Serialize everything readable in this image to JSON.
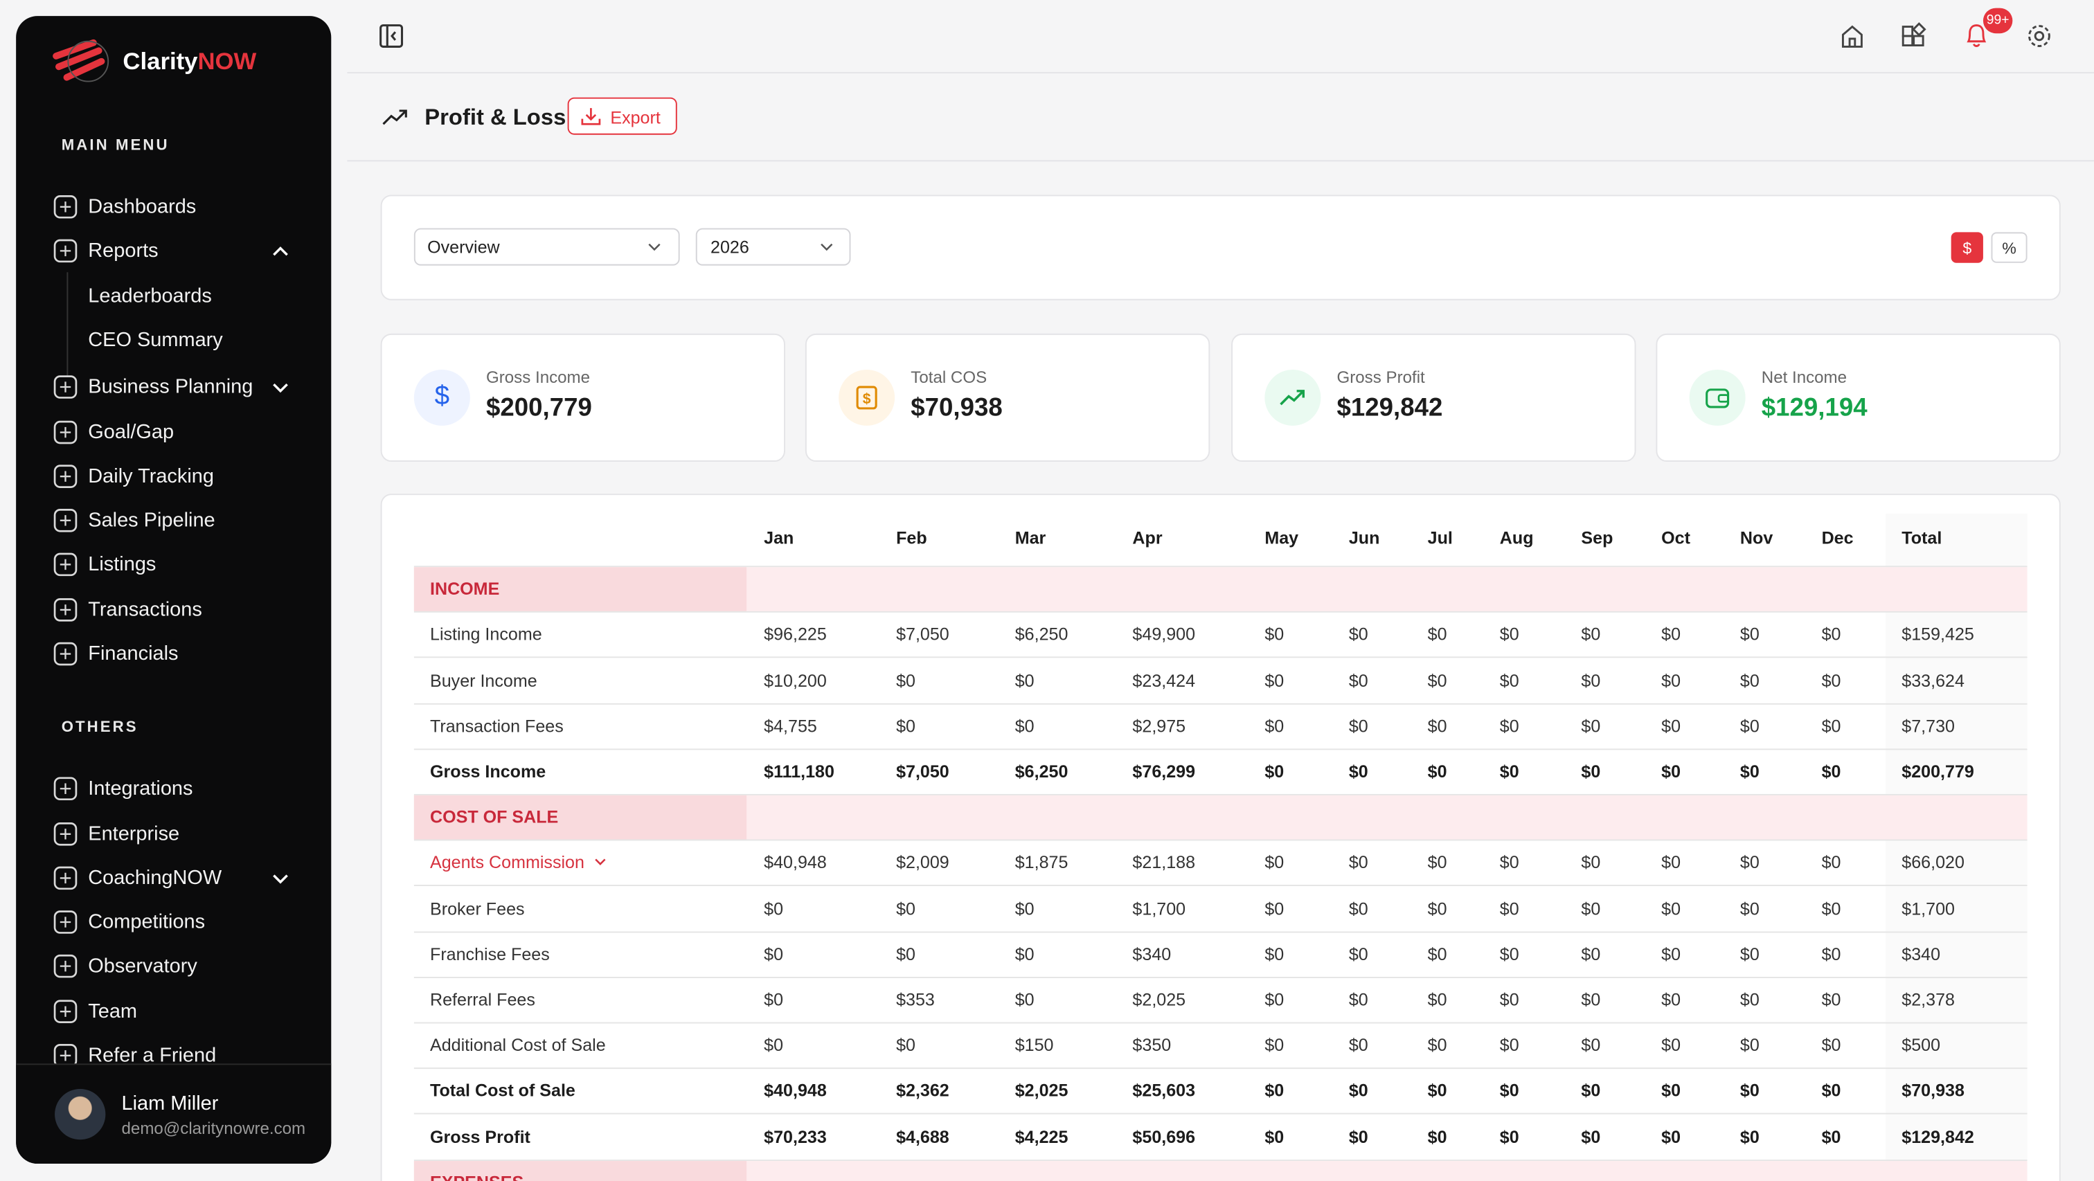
{
  "sidebar": {
    "brand": {
      "name": "Clarity",
      "accent": "NOW"
    },
    "sections": [
      {
        "title": "MAIN MENU",
        "items": [
          {
            "label": "Dashboards"
          },
          {
            "label": "Reports",
            "chevron": "up",
            "children": [
              "Leaderboards",
              "CEO Summary"
            ]
          },
          {
            "label": "Business Planning",
            "chevron": "down"
          },
          {
            "label": "Goal/Gap"
          },
          {
            "label": "Daily Tracking"
          },
          {
            "label": "Sales Pipeline"
          },
          {
            "label": "Listings"
          },
          {
            "label": "Transactions"
          },
          {
            "label": "Financials"
          }
        ]
      },
      {
        "title": "OTHERS",
        "items": [
          {
            "label": "Integrations"
          },
          {
            "label": "Enterprise"
          },
          {
            "label": "CoachingNOW",
            "chevron": "down"
          },
          {
            "label": "Competitions"
          },
          {
            "label": "Observatory"
          },
          {
            "label": "Team"
          },
          {
            "label": "Refer a Friend"
          }
        ]
      }
    ],
    "user": {
      "name": "Liam Miller",
      "email": "demo@claritynowre.com"
    }
  },
  "topbar": {
    "notification_badge": "99+"
  },
  "header": {
    "title": "Profit & Loss",
    "export": "Export"
  },
  "filters": {
    "view": "Overview",
    "year": "2026",
    "toggles": [
      "$",
      "%"
    ]
  },
  "cards": [
    {
      "label": "Gross Income",
      "value": "$200,779"
    },
    {
      "label": "Total COS",
      "value": "$70,938"
    },
    {
      "label": "Gross Profit",
      "value": "$129,842"
    },
    {
      "label": "Net Income",
      "value": "$129,194"
    }
  ],
  "table": {
    "columns": [
      "Jan",
      "Feb",
      "Mar",
      "Apr",
      "May",
      "Jun",
      "Jul",
      "Aug",
      "Sep",
      "Oct",
      "Nov",
      "Dec",
      "Total"
    ],
    "rows": [
      {
        "kind": "section",
        "label": "INCOME"
      },
      {
        "kind": "row",
        "label": "Listing Income",
        "cells": [
          "$96,225",
          "$7,050",
          "$6,250",
          "$49,900",
          "$0",
          "$0",
          "$0",
          "$0",
          "$0",
          "$0",
          "$0",
          "$0",
          "$159,425"
        ]
      },
      {
        "kind": "row",
        "label": "Buyer Income",
        "cells": [
          "$10,200",
          "$0",
          "$0",
          "$23,424",
          "$0",
          "$0",
          "$0",
          "$0",
          "$0",
          "$0",
          "$0",
          "$0",
          "$33,624"
        ]
      },
      {
        "kind": "row",
        "label": "Transaction Fees",
        "cells": [
          "$4,755",
          "$0",
          "$0",
          "$2,975",
          "$0",
          "$0",
          "$0",
          "$0",
          "$0",
          "$0",
          "$0",
          "$0",
          "$7,730"
        ]
      },
      {
        "kind": "total",
        "label": "Gross Income",
        "cells": [
          "$111,180",
          "$7,050",
          "$6,250",
          "$76,299",
          "$0",
          "$0",
          "$0",
          "$0",
          "$0",
          "$0",
          "$0",
          "$0",
          "$200,779"
        ]
      },
      {
        "kind": "section",
        "label": "COST OF SALE"
      },
      {
        "kind": "expandable",
        "label": "Agents Commission",
        "cells": [
          "$40,948",
          "$2,009",
          "$1,875",
          "$21,188",
          "$0",
          "$0",
          "$0",
          "$0",
          "$0",
          "$0",
          "$0",
          "$0",
          "$66,020"
        ]
      },
      {
        "kind": "row",
        "label": "Broker Fees",
        "cells": [
          "$0",
          "$0",
          "$0",
          "$1,700",
          "$0",
          "$0",
          "$0",
          "$0",
          "$0",
          "$0",
          "$0",
          "$0",
          "$1,700"
        ]
      },
      {
        "kind": "row",
        "label": "Franchise Fees",
        "cells": [
          "$0",
          "$0",
          "$0",
          "$340",
          "$0",
          "$0",
          "$0",
          "$0",
          "$0",
          "$0",
          "$0",
          "$0",
          "$340"
        ]
      },
      {
        "kind": "row",
        "label": "Referral Fees",
        "cells": [
          "$0",
          "$353",
          "$0",
          "$2,025",
          "$0",
          "$0",
          "$0",
          "$0",
          "$0",
          "$0",
          "$0",
          "$0",
          "$2,378"
        ]
      },
      {
        "kind": "row",
        "label": "Additional Cost of Sale",
        "cells": [
          "$0",
          "$0",
          "$150",
          "$350",
          "$0",
          "$0",
          "$0",
          "$0",
          "$0",
          "$0",
          "$0",
          "$0",
          "$500"
        ]
      },
      {
        "kind": "total",
        "label": "Total Cost of Sale",
        "cells": [
          "$40,948",
          "$2,362",
          "$2,025",
          "$25,603",
          "$0",
          "$0",
          "$0",
          "$0",
          "$0",
          "$0",
          "$0",
          "$0",
          "$70,938"
        ]
      },
      {
        "kind": "total",
        "label": "Gross Profit",
        "cells": [
          "$70,233",
          "$4,688",
          "$4,225",
          "$50,696",
          "$0",
          "$0",
          "$0",
          "$0",
          "$0",
          "$0",
          "$0",
          "$0",
          "$129,842"
        ]
      },
      {
        "kind": "section",
        "label": "EXPENSES"
      }
    ]
  }
}
